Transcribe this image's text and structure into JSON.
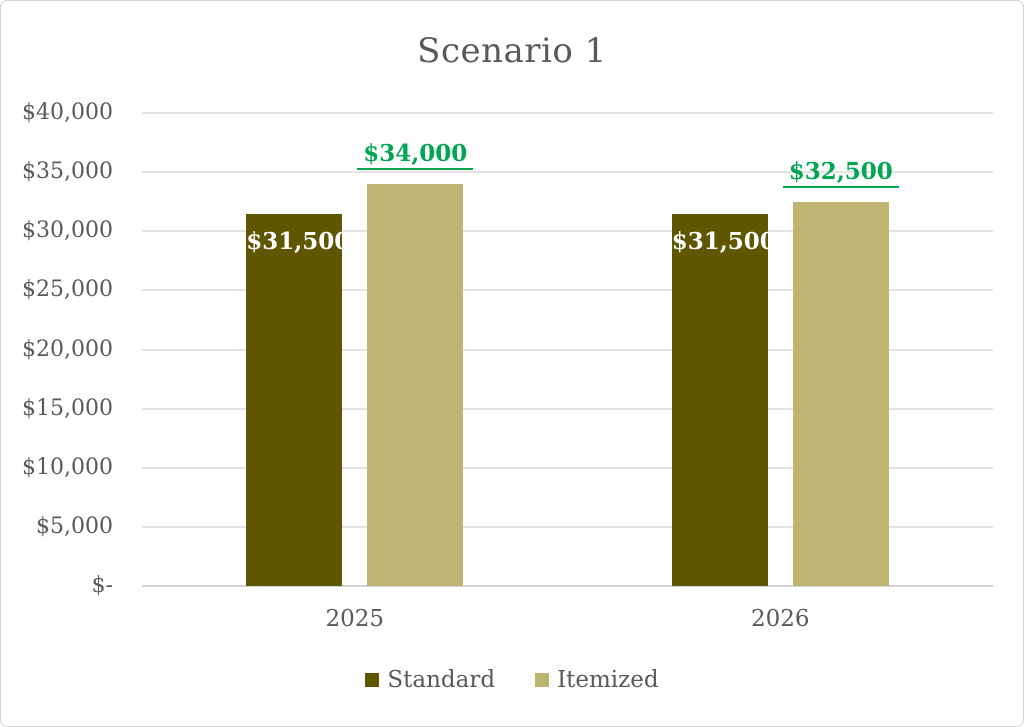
{
  "window": {
    "background_color": "#ffffff",
    "border_color": "#d5d5d5"
  },
  "chart_data": {
    "type": "bar",
    "title": "Scenario 1",
    "categories": [
      "2025",
      "2026"
    ],
    "series": [
      {
        "name": "Standard",
        "color": "#5f5602",
        "values": [
          31500,
          31500
        ],
        "data_labels": [
          "$31,500",
          "$31,500"
        ],
        "label_position": "inside-end",
        "label_color": "#ffffff",
        "label_underline": false
      },
      {
        "name": "Itemized",
        "color": "#bfb573",
        "values": [
          34000,
          32500
        ],
        "data_labels": [
          "$34,000",
          "$32,500"
        ],
        "label_position": "outside-end",
        "label_color": "#00a651",
        "label_underline": true
      }
    ],
    "y_axis": {
      "min": 0,
      "max": 40000,
      "step": 5000,
      "tick_labels": [
        "$-",
        "$5,000",
        "$10,000",
        "$15,000",
        "$20,000",
        "$25,000",
        "$30,000",
        "$35,000",
        "$40,000"
      ]
    },
    "xlabel": "",
    "ylabel": "",
    "grid": true,
    "legend_position": "bottom",
    "text_color": "#595959",
    "gridline_color": "#e2e2e2",
    "axis_line_color": "#d2d2d2"
  }
}
